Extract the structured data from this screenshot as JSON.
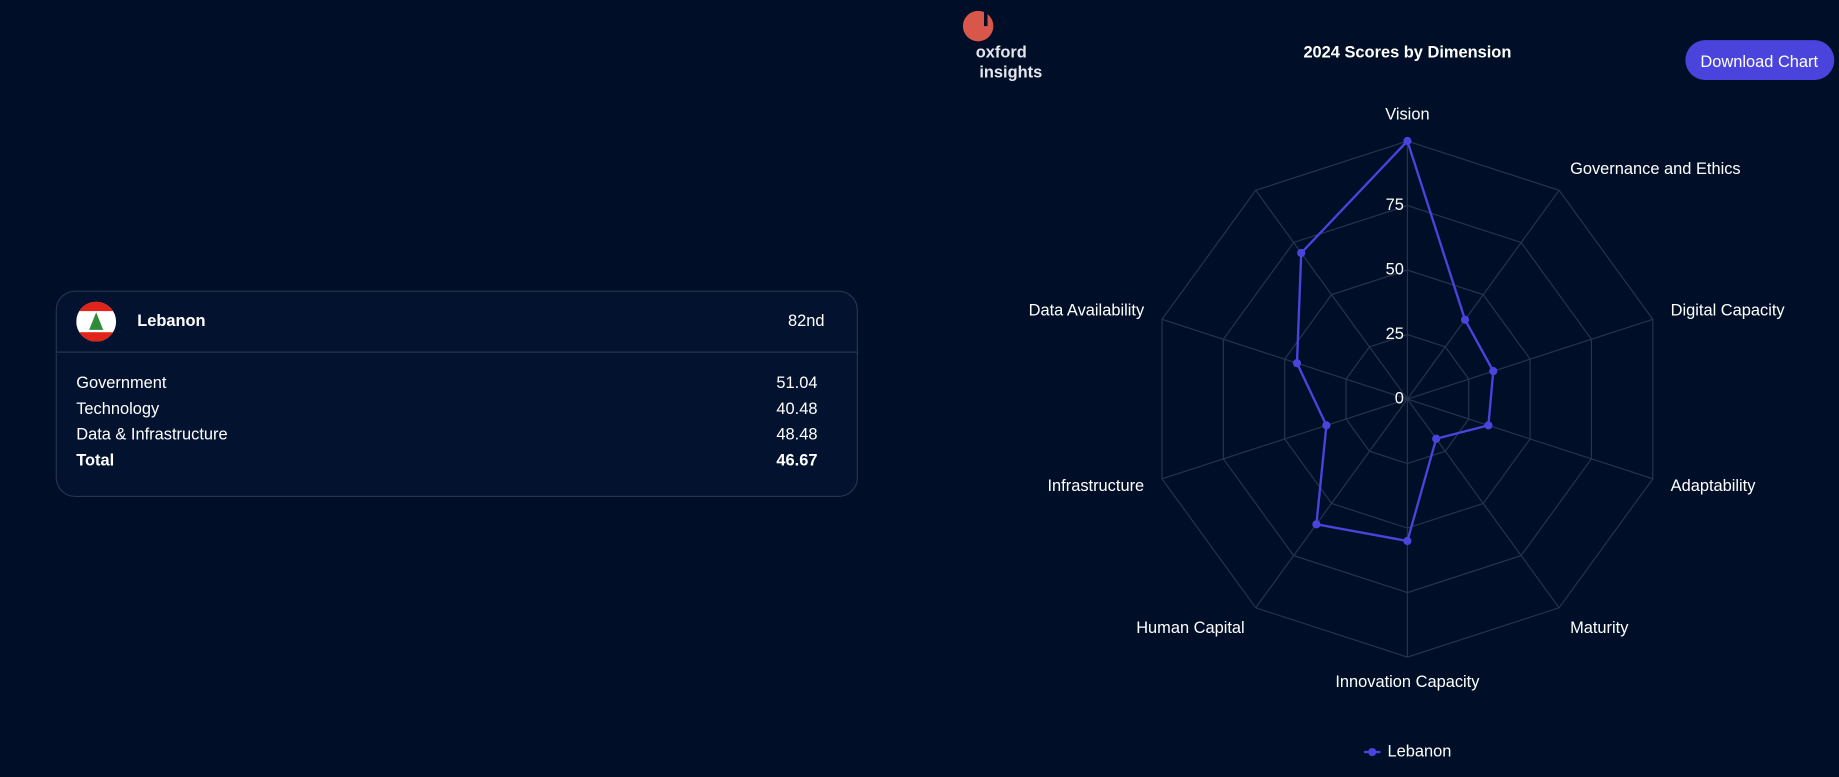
{
  "logo": {
    "line1": "oxford",
    "line2": "insights"
  },
  "button": "Download Chart",
  "card": {
    "country": "Lebanon",
    "rank": "82nd",
    "rows": [
      [
        "Government",
        51.04
      ],
      [
        "Technology",
        40.48
      ],
      [
        "Data & Infrastructure",
        48.48
      ],
      [
        "Total",
        46.67
      ]
    ]
  },
  "chart_data": {
    "type": "radar",
    "title": "2024 Scores by Dimension",
    "categories": [
      "Vision",
      "Governance and Ethics",
      "Digital Capacity",
      "Adaptability",
      "Maturity",
      "Innovation Capacity",
      "Human Capital",
      "Infrastructure",
      "Data Availability",
      null
    ],
    "series": [
      {
        "name": "Lebanon",
        "color": "#4a44dc",
        "values": [
          100,
          38,
          35,
          33,
          19,
          55,
          60,
          33,
          45,
          70
        ]
      }
    ],
    "ylim": [
      0,
      100
    ],
    "yticks": [
      0,
      25,
      50,
      75
    ],
    "grid": true,
    "legend": "bottom"
  }
}
